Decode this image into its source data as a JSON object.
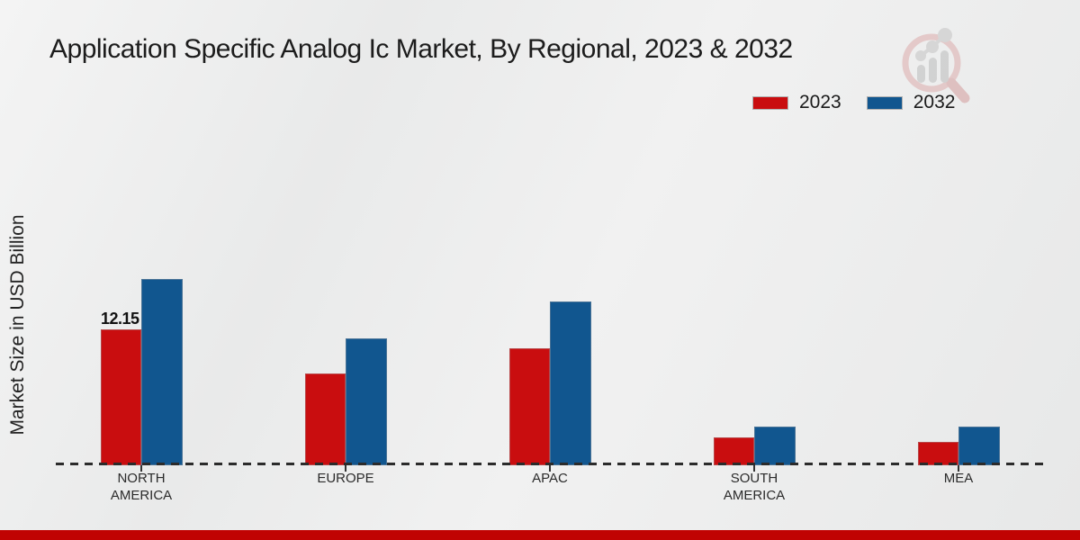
{
  "title": "Application Specific Analog Ic Market, By Regional, 2023 & 2032",
  "ylabel": "Market Size in USD Billion",
  "legend": {
    "items": [
      {
        "label": "2023",
        "color": "#c90d0f"
      },
      {
        "label": "2032",
        "color": "#11568f"
      }
    ],
    "position": "top-right"
  },
  "chart_data": {
    "type": "bar",
    "categories": [
      "NORTH AMERICA",
      "EUROPE",
      "APAC",
      "SOUTH AMERICA",
      "MEA"
    ],
    "series": [
      {
        "name": "2023",
        "color": "#c90d0f",
        "values": [
          12.15,
          8.2,
          10.5,
          2.5,
          2.1
        ]
      },
      {
        "name": "2032",
        "color": "#11568f",
        "values": [
          16.65,
          11.35,
          14.65,
          3.45,
          3.45
        ]
      }
    ],
    "data_labels": [
      {
        "series_index": 0,
        "category_index": 0,
        "text": "12.15"
      }
    ],
    "title": "Application Specific Analog Ic Market, By Regional, 2023 & 2032",
    "xlabel": "",
    "ylabel": "Market Size in USD Billion",
    "ylim": [
      0,
      18
    ],
    "grid": false,
    "baseline_style": "dashed",
    "legend_position": "top-right"
  },
  "colors": {
    "series_2023": "#c90d0f",
    "series_2032": "#11568f",
    "footer_bar": "#c00302",
    "background": "#ececec",
    "axis_text": "#2b2b2b"
  }
}
